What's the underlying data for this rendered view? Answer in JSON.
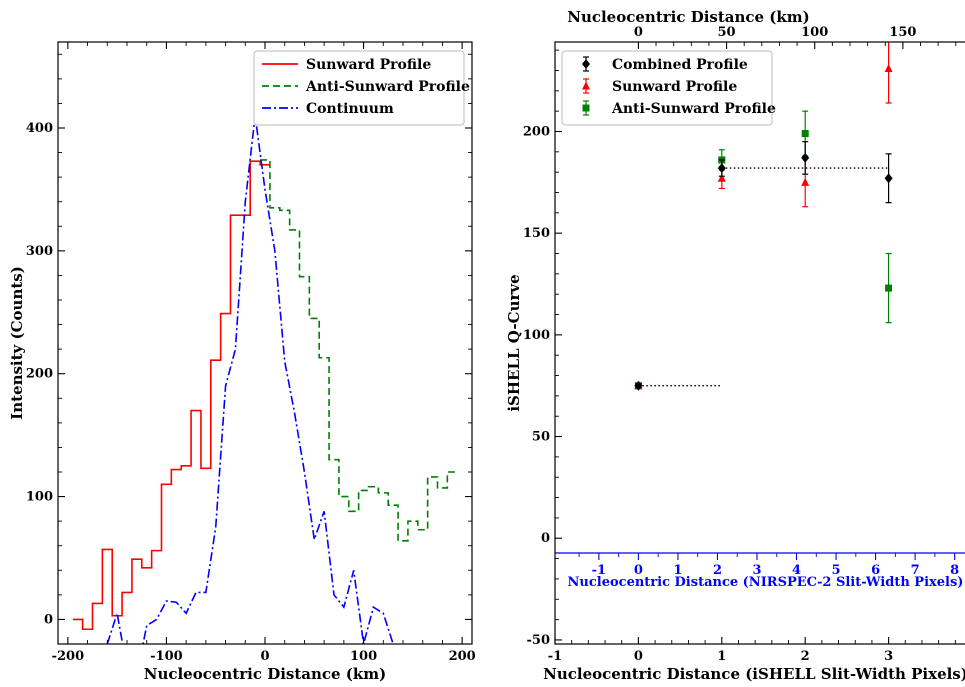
{
  "chart_data": [
    {
      "type": "line",
      "xlabel": "Nucleocentric Distance (km)",
      "ylabel": "Intensity (Counts)",
      "xlim": [
        -210,
        210
      ],
      "ylim": [
        -20,
        470
      ],
      "xticks": [
        -200,
        -100,
        0,
        100,
        200
      ],
      "yticks": [
        0,
        100,
        200,
        300,
        400
      ],
      "legend_position": "top-right",
      "series": [
        {
          "name": "Sunward Profile",
          "color": "#ff0000",
          "style": "solid-step",
          "x": [
            -190,
            -180,
            -170,
            -160,
            -150,
            -140,
            -130,
            -120,
            -110,
            -100,
            -90,
            -80,
            -70,
            -60,
            -50,
            -40,
            -30,
            -20,
            -10,
            0
          ],
          "y": [
            0,
            -8,
            13,
            57,
            3,
            22,
            49,
            42,
            56,
            110,
            122,
            125,
            170,
            123,
            211,
            249,
            329,
            329,
            373,
            370
          ]
        },
        {
          "name": "Anti-Sunward Profile",
          "color": "#008000",
          "style": "dashed-step",
          "x": [
            0,
            10,
            20,
            30,
            40,
            50,
            60,
            70,
            80,
            90,
            100,
            110,
            120,
            130,
            140,
            150,
            160,
            170,
            180,
            190
          ],
          "y": [
            374,
            335,
            333,
            317,
            279,
            245,
            213,
            130,
            100,
            88,
            105,
            108,
            103,
            93,
            64,
            80,
            73,
            116,
            107,
            120
          ]
        },
        {
          "name": "Continuum",
          "color": "#0000ff",
          "style": "dashdot",
          "x": [
            -160,
            -150,
            -140,
            -130,
            -120,
            -110,
            -100,
            -90,
            -80,
            -70,
            -60,
            -50,
            -40,
            -30,
            -20,
            -10,
            0,
            10,
            20,
            30,
            40,
            50,
            60,
            70,
            80,
            90,
            100,
            110,
            120,
            130
          ],
          "y": [
            -20,
            5,
            -40,
            -45,
            -5,
            0,
            15,
            14,
            5,
            22,
            22,
            75,
            190,
            220,
            340,
            410,
            350,
            300,
            210,
            168,
            120,
            65,
            88,
            20,
            10,
            40,
            -20,
            10,
            5,
            -20
          ]
        }
      ]
    },
    {
      "type": "scatter",
      "xlabel": "Nucleocentric Distance (iSHELL Slit-Width Pixels)",
      "ylabel": "iSHELL Q-Curve",
      "top_xlabel": "Nucleocentric Distance (km)",
      "inner_xlabel": "Nucleocentric Distance (NIRSPEC-2 Slit-Width Pixels)",
      "xlim": [
        -1,
        4
      ],
      "ylim": [
        -52,
        244
      ],
      "xticks": [
        -1,
        0,
        1,
        2,
        3
      ],
      "yticks": [
        -50,
        0,
        50,
        100,
        150,
        200
      ],
      "top_xticks": [
        0,
        50,
        100,
        150
      ],
      "inner_xticks": [
        -1,
        0,
        1,
        2,
        3,
        4,
        5,
        6,
        7,
        8
      ],
      "legend_position": "top-left",
      "series": [
        {
          "name": "Combined Profile",
          "color": "#000000",
          "marker": "diamond",
          "x": [
            0,
            1,
            2,
            3
          ],
          "y": [
            75,
            182,
            187,
            177
          ],
          "err": [
            1,
            4,
            8,
            12
          ]
        },
        {
          "name": "Sunward Profile",
          "color": "#ff0000",
          "marker": "triangle",
          "x": [
            0,
            1,
            2,
            3
          ],
          "y": [
            75,
            177,
            175,
            231
          ],
          "err": [
            1,
            5,
            12,
            17
          ]
        },
        {
          "name": "Anti-Sunward Profile",
          "color": "#008000",
          "marker": "square",
          "x": [
            0,
            1,
            2,
            3
          ],
          "y": [
            75,
            186,
            199,
            123
          ],
          "err": [
            1,
            5,
            11,
            17
          ]
        }
      ],
      "dotted_lines": [
        {
          "x": [
            0,
            1
          ],
          "y": [
            75,
            75
          ]
        },
        {
          "x": [
            1,
            3
          ],
          "y": [
            182,
            182
          ]
        }
      ]
    }
  ]
}
